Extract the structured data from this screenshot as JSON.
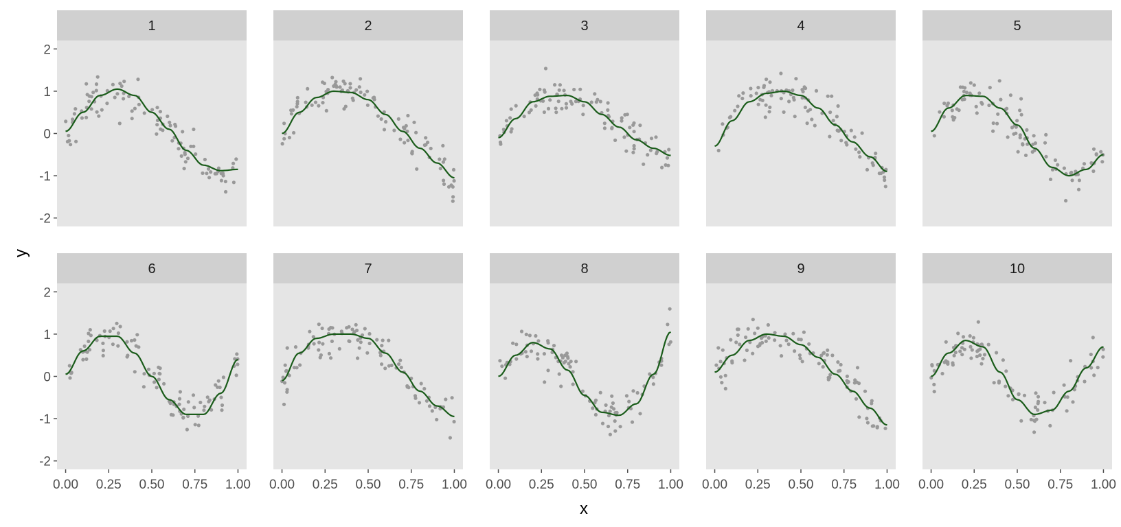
{
  "colors": {
    "panel_background": "#e5e5e5",
    "strip_background": "#d0d0d0",
    "points": "#999999",
    "line": "#1a5c1a",
    "tick": "#4d4d4d"
  },
  "chart_data": {
    "type": "scatter",
    "layout": "facet_wrap 2 rows x 5 columns",
    "xlabel": "x",
    "ylabel": "y",
    "xlim": [
      -0.05,
      1.05
    ],
    "ylim": [
      -2.2,
      2.2
    ],
    "x_ticks": [
      0,
      0.25,
      0.5,
      0.75,
      1
    ],
    "x_tick_labels": [
      "0.00",
      "0.25",
      "0.50",
      "0.75",
      "1.00"
    ],
    "y_ticks": [
      -2,
      -1,
      0,
      1,
      2
    ],
    "y_tick_labels": [
      "-2",
      "-1",
      "0",
      "1",
      "2"
    ],
    "grid": false,
    "legend": "none",
    "points_per_panel": 100,
    "point_series": "noisy observations (grey dots, approx. 100 per panel, spread about the fitted curve with noise sd approx. 0.25)",
    "panels": [
      {
        "label": "1",
        "curve": {
          "x": [
            0,
            0.1,
            0.2,
            0.3,
            0.4,
            0.5,
            0.6,
            0.7,
            0.8,
            0.9,
            1.0
          ],
          "y": [
            0.05,
            0.5,
            0.9,
            1.05,
            0.9,
            0.5,
            0.1,
            -0.4,
            -0.75,
            -0.88,
            -0.85
          ]
        }
      },
      {
        "label": "2",
        "curve": {
          "x": [
            0,
            0.1,
            0.2,
            0.3,
            0.4,
            0.5,
            0.6,
            0.7,
            0.8,
            0.9,
            1.0
          ],
          "y": [
            0.0,
            0.5,
            0.85,
            1.0,
            0.97,
            0.8,
            0.45,
            0.05,
            -0.35,
            -0.7,
            -1.05
          ]
        }
      },
      {
        "label": "3",
        "curve": {
          "x": [
            0,
            0.1,
            0.2,
            0.3,
            0.4,
            0.5,
            0.6,
            0.7,
            0.8,
            0.9,
            1.0
          ],
          "y": [
            -0.1,
            0.35,
            0.75,
            0.88,
            0.9,
            0.75,
            0.45,
            0.15,
            -0.15,
            -0.35,
            -0.52
          ]
        }
      },
      {
        "label": "4",
        "curve": {
          "x": [
            0,
            0.1,
            0.2,
            0.3,
            0.4,
            0.5,
            0.6,
            0.7,
            0.8,
            0.9,
            1.0
          ],
          "y": [
            -0.3,
            0.3,
            0.75,
            0.95,
            1.0,
            0.9,
            0.6,
            0.2,
            -0.2,
            -0.55,
            -0.9
          ]
        }
      },
      {
        "label": "5",
        "curve": {
          "x": [
            0,
            0.1,
            0.2,
            0.3,
            0.4,
            0.5,
            0.6,
            0.7,
            0.8,
            0.9,
            1.0
          ],
          "y": [
            0.05,
            0.6,
            0.9,
            0.88,
            0.6,
            0.2,
            -0.35,
            -0.8,
            -1.0,
            -0.85,
            -0.5
          ]
        }
      },
      {
        "label": "6",
        "curve": {
          "x": [
            0,
            0.1,
            0.2,
            0.3,
            0.4,
            0.5,
            0.6,
            0.7,
            0.8,
            0.9,
            1.0
          ],
          "y": [
            0.05,
            0.6,
            0.95,
            0.95,
            0.55,
            0.0,
            -0.55,
            -0.9,
            -0.9,
            -0.4,
            0.4
          ]
        }
      },
      {
        "label": "7",
        "curve": {
          "x": [
            0,
            0.1,
            0.2,
            0.3,
            0.4,
            0.5,
            0.6,
            0.7,
            0.8,
            0.9,
            1.0
          ],
          "y": [
            -0.1,
            0.55,
            0.9,
            1.0,
            1.0,
            0.9,
            0.55,
            0.1,
            -0.35,
            -0.7,
            -0.95
          ]
        }
      },
      {
        "label": "8",
        "curve": {
          "x": [
            0,
            0.1,
            0.2,
            0.3,
            0.4,
            0.5,
            0.6,
            0.7,
            0.8,
            0.9,
            1.0
          ],
          "y": [
            0.0,
            0.5,
            0.8,
            0.65,
            0.15,
            -0.45,
            -0.85,
            -0.92,
            -0.65,
            0.05,
            1.05
          ]
        }
      },
      {
        "label": "9",
        "curve": {
          "x": [
            0,
            0.1,
            0.2,
            0.3,
            0.4,
            0.5,
            0.6,
            0.7,
            0.8,
            0.9,
            1.0
          ],
          "y": [
            0.1,
            0.5,
            0.85,
            1.0,
            0.95,
            0.75,
            0.45,
            0.05,
            -0.35,
            -0.75,
            -1.15
          ]
        }
      },
      {
        "label": "10",
        "curve": {
          "x": [
            0,
            0.1,
            0.2,
            0.3,
            0.4,
            0.5,
            0.6,
            0.7,
            0.8,
            0.9,
            1.0
          ],
          "y": [
            0.0,
            0.55,
            0.85,
            0.7,
            0.1,
            -0.55,
            -0.9,
            -0.8,
            -0.35,
            0.2,
            0.7
          ]
        }
      }
    ]
  }
}
